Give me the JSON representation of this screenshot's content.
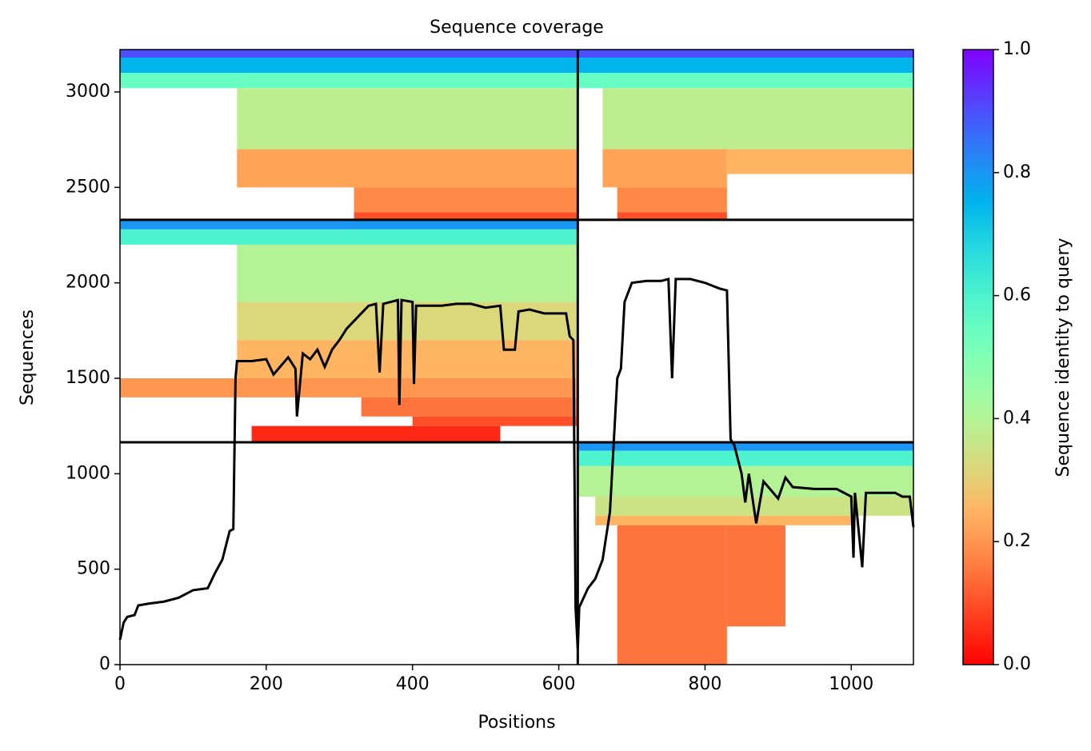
{
  "chart_data": {
    "type": "coverage",
    "title": "Sequence coverage",
    "x_label": "Positions",
    "y_label": "Sequences",
    "xlim": [
      0,
      1085
    ],
    "ylim": [
      0,
      3222
    ],
    "xticks": [
      0,
      200,
      400,
      600,
      800,
      1000
    ],
    "yticks": [
      0,
      500,
      1000,
      1500,
      2000,
      2500,
      3000
    ],
    "colormap": "rainbow_r",
    "colorbar": {
      "label": "Sequence identity to query",
      "lim": [
        0,
        1
      ],
      "ticks": [
        {
          "value": 0,
          "label": "0.0"
        },
        {
          "value": 0.2,
          "label": "0.2"
        },
        {
          "value": 0.4,
          "label": "0.4"
        },
        {
          "value": 0.6,
          "label": "0.6"
        },
        {
          "value": 0.8,
          "label": "0.8"
        },
        {
          "value": 1,
          "label": "1.0"
        }
      ]
    },
    "boundaries": {
      "x": [
        626
      ],
      "y": [
        1165,
        2330
      ],
      "color": "#000000"
    },
    "blocks": [
      {
        "x": [
          0,
          626
        ],
        "y": [
          3180,
          3222
        ],
        "identity": 0.9
      },
      {
        "x": [
          0,
          626
        ],
        "y": [
          3100,
          3180
        ],
        "identity": 0.75
      },
      {
        "x": [
          0,
          626
        ],
        "y": [
          3020,
          3100
        ],
        "identity": 0.55
      },
      {
        "x": [
          160,
          626
        ],
        "y": [
          2700,
          3020
        ],
        "identity": 0.38
      },
      {
        "x": [
          160,
          626
        ],
        "y": [
          2500,
          2700
        ],
        "identity": 0.22
      },
      {
        "x": [
          320,
          626
        ],
        "y": [
          2370,
          2500
        ],
        "identity": 0.18
      },
      {
        "x": [
          320,
          626
        ],
        "y": [
          2330,
          2370
        ],
        "identity": 0.1
      },
      {
        "x": [
          626,
          1085
        ],
        "y": [
          3180,
          3222
        ],
        "identity": 0.9
      },
      {
        "x": [
          626,
          1085
        ],
        "y": [
          3100,
          3180
        ],
        "identity": 0.75
      },
      {
        "x": [
          626,
          1085
        ],
        "y": [
          3020,
          3100
        ],
        "identity": 0.55
      },
      {
        "x": [
          660,
          1085
        ],
        "y": [
          2700,
          3020
        ],
        "identity": 0.38
      },
      {
        "x": [
          660,
          830
        ],
        "y": [
          2500,
          2700
        ],
        "identity": 0.22
      },
      {
        "x": [
          830,
          1085
        ],
        "y": [
          2570,
          2700
        ],
        "identity": 0.25
      },
      {
        "x": [
          680,
          830
        ],
        "y": [
          2370,
          2500
        ],
        "identity": 0.18
      },
      {
        "x": [
          680,
          830
        ],
        "y": [
          2330,
          2370
        ],
        "identity": 0.1
      },
      {
        "x": [
          0,
          626
        ],
        "y": [
          2280,
          2330
        ],
        "identity": 0.8
      },
      {
        "x": [
          0,
          626
        ],
        "y": [
          2200,
          2280
        ],
        "identity": 0.6
      },
      {
        "x": [
          160,
          626
        ],
        "y": [
          1900,
          2200
        ],
        "identity": 0.4
      },
      {
        "x": [
          160,
          626
        ],
        "y": [
          1700,
          1900
        ],
        "identity": 0.32
      },
      {
        "x": [
          160,
          626
        ],
        "y": [
          1500,
          1700
        ],
        "identity": 0.25
      },
      {
        "x": [
          0,
          626
        ],
        "y": [
          1400,
          1500
        ],
        "identity": 0.2
      },
      {
        "x": [
          330,
          626
        ],
        "y": [
          1300,
          1400
        ],
        "identity": 0.15
      },
      {
        "x": [
          400,
          626
        ],
        "y": [
          1250,
          1300
        ],
        "identity": 0.1
      },
      {
        "x": [
          180,
          520
        ],
        "y": [
          1170,
          1250
        ],
        "identity": 0.05
      },
      {
        "x": [
          626,
          1085
        ],
        "y": [
          1120,
          1165
        ],
        "identity": 0.8
      },
      {
        "x": [
          626,
          1085
        ],
        "y": [
          1040,
          1120
        ],
        "identity": 0.6
      },
      {
        "x": [
          626,
          1085
        ],
        "y": [
          880,
          1040
        ],
        "identity": 0.4
      },
      {
        "x": [
          650,
          1085
        ],
        "y": [
          780,
          880
        ],
        "identity": 0.35
      },
      {
        "x": [
          650,
          1000
        ],
        "y": [
          730,
          780
        ],
        "identity": 0.25
      },
      {
        "x": [
          680,
          830
        ],
        "y": [
          0,
          730
        ],
        "identity": 0.15
      },
      {
        "x": [
          830,
          910
        ],
        "y": [
          200,
          730
        ],
        "identity": 0.15
      }
    ],
    "coverage": {
      "color": "#000000",
      "x": [
        0,
        5,
        10,
        20,
        25,
        40,
        60,
        80,
        100,
        120,
        130,
        140,
        150,
        155,
        158,
        160,
        180,
        200,
        210,
        230,
        240,
        242,
        250,
        260,
        270,
        280,
        290,
        300,
        310,
        330,
        340,
        350,
        355,
        360,
        380,
        382,
        385,
        400,
        402,
        405,
        440,
        460,
        480,
        500,
        520,
        525,
        540,
        545,
        560,
        580,
        600,
        610,
        615,
        620,
        623,
        626,
        628,
        640,
        650,
        660,
        670,
        680,
        685,
        690,
        700,
        720,
        740,
        750,
        755,
        760,
        780,
        800,
        820,
        830,
        832,
        835,
        840,
        850,
        855,
        860,
        870,
        880,
        900,
        910,
        920,
        950,
        980,
        1000,
        1003,
        1005,
        1015,
        1020,
        1040,
        1060,
        1070,
        1080,
        1085
      ],
      "values": [
        130,
        220,
        250,
        260,
        310,
        320,
        330,
        350,
        390,
        400,
        480,
        550,
        700,
        710,
        1500,
        1590,
        1590,
        1600,
        1520,
        1610,
        1550,
        1300,
        1630,
        1600,
        1650,
        1560,
        1650,
        1700,
        1760,
        1840,
        1880,
        1890,
        1530,
        1890,
        1910,
        1360,
        1910,
        1900,
        1470,
        1880,
        1880,
        1890,
        1890,
        1870,
        1880,
        1650,
        1650,
        1850,
        1860,
        1840,
        1840,
        1840,
        1720,
        1700,
        300,
        80,
        300,
        400,
        450,
        550,
        800,
        1500,
        1550,
        1900,
        2000,
        2010,
        2010,
        2020,
        1500,
        2020,
        2020,
        2000,
        1970,
        1960,
        1650,
        1180,
        1150,
        1000,
        850,
        1000,
        740,
        960,
        870,
        980,
        930,
        920,
        920,
        880,
        560,
        900,
        510,
        900,
        900,
        900,
        880,
        880,
        720
      ]
    }
  }
}
